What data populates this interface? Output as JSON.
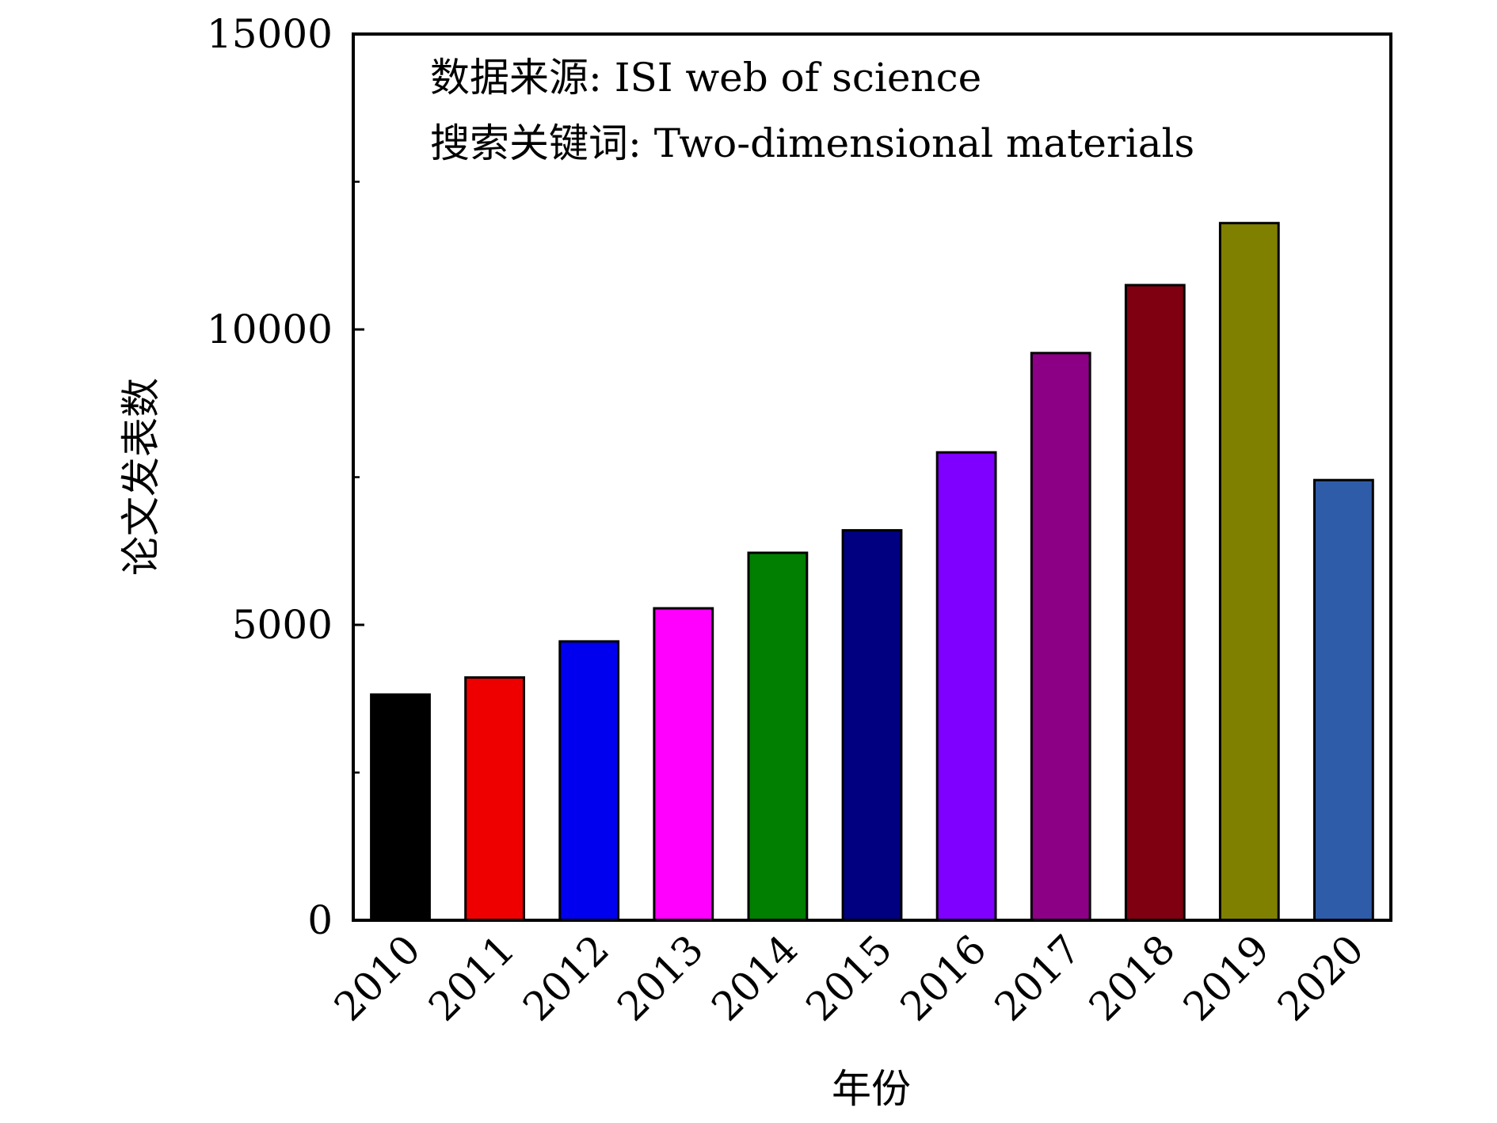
{
  "chart_data": {
    "type": "bar",
    "categories": [
      "2010",
      "2011",
      "2012",
      "2013",
      "2014",
      "2015",
      "2016",
      "2017",
      "2018",
      "2019",
      "2020"
    ],
    "values": [
      3820,
      4110,
      4720,
      5280,
      6220,
      6600,
      7920,
      9600,
      10750,
      11800,
      7450
    ],
    "colors": [
      "#000000",
      "#ee0000",
      "#0000ee",
      "#ff00ff",
      "#007f00",
      "#000080",
      "#7f00ff",
      "#8b0085",
      "#7f0010",
      "#808000",
      "#2f5ca8"
    ],
    "title": "",
    "xlabel": "年份",
    "ylabel": "论文发表数",
    "ylim": [
      0,
      15000
    ],
    "yticks": [
      0,
      5000,
      10000,
      15000
    ],
    "yticks_minor": [
      2500,
      7500,
      12500
    ],
    "grid": false,
    "legend": "none",
    "annotations": [
      "数据来源: ISI web of science",
      "搜索关键词: Two-dimensional materials"
    ]
  }
}
